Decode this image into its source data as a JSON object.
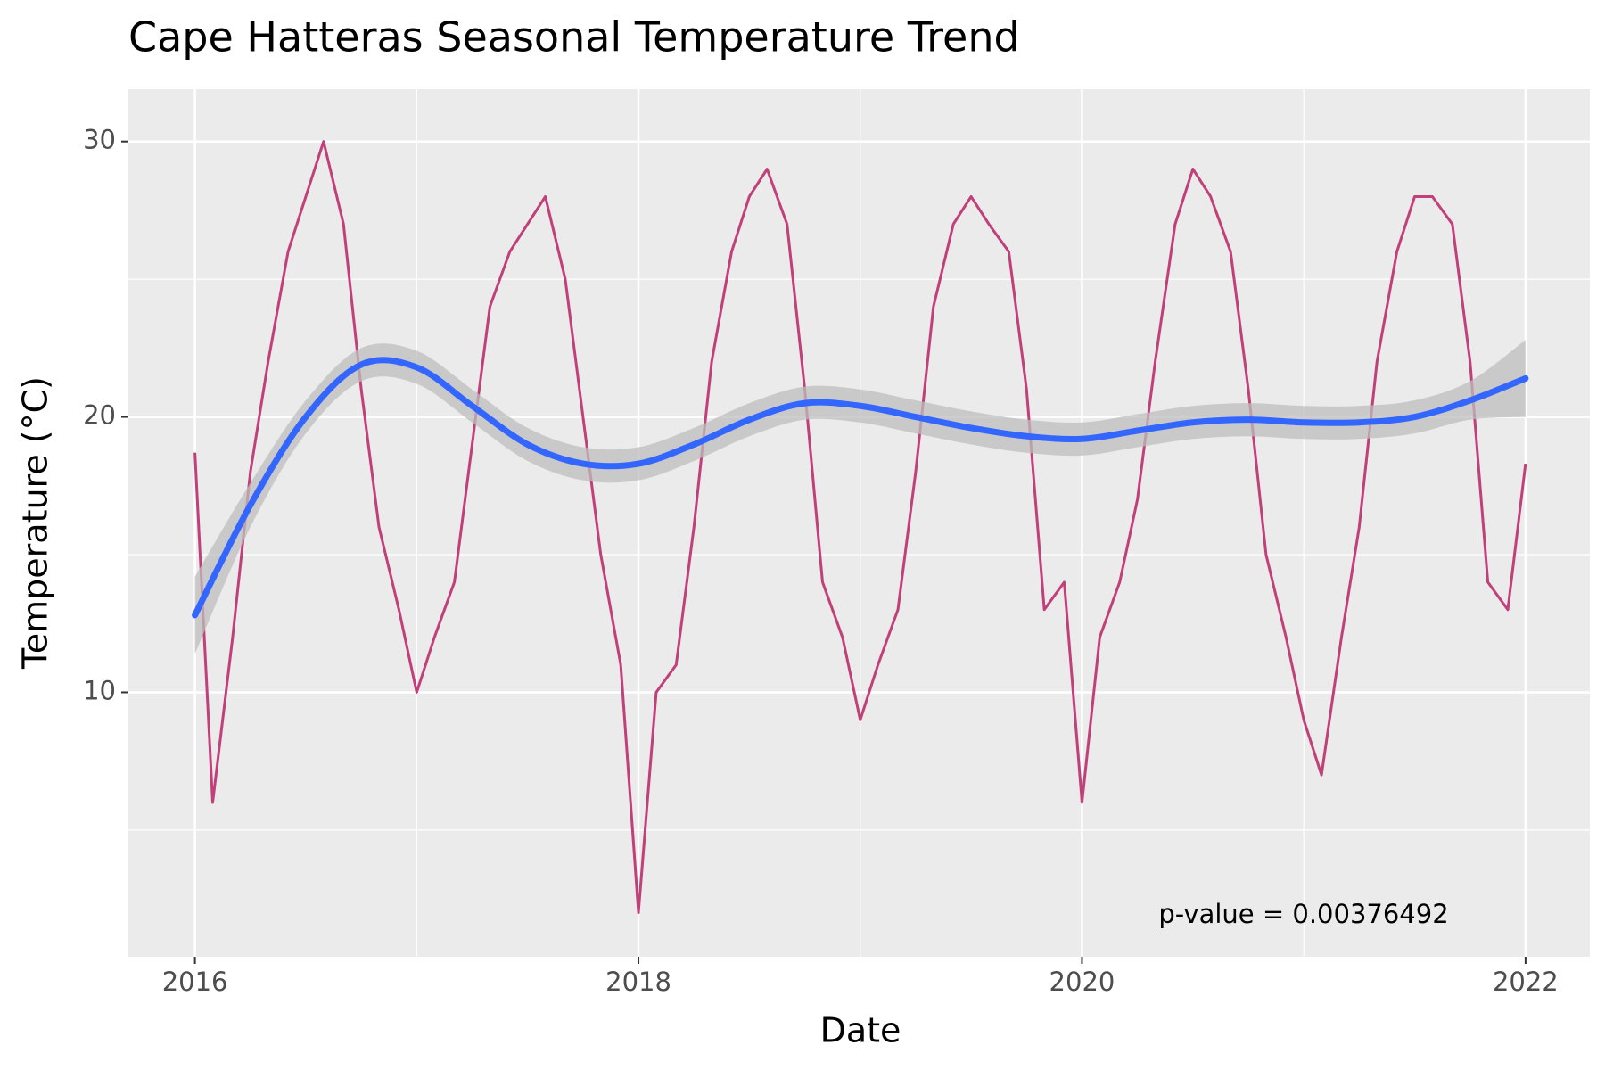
{
  "chart_data": {
    "type": "line",
    "title": "Cape Hatteras Seasonal Temperature Trend",
    "x_label": "Date",
    "y_label": "Temperature (°C)",
    "annotation": "p-value = 0.00376492",
    "xlim": [
      2015.7,
      2022.29
    ],
    "xticks": [
      2016,
      2018,
      2020,
      2022
    ],
    "x_minor_grid": [
      2017,
      2019,
      2021
    ],
    "ylim": [
      0.4,
      31.9
    ],
    "yticks": [
      10,
      20,
      30
    ],
    "y_minor_grid": [
      5,
      15,
      25
    ],
    "grid": true,
    "background": "#ebebeb",
    "series": [
      {
        "name": "Temperature",
        "color": "#c2407a",
        "x": [
          2016.0,
          2016.08,
          2016.17,
          2016.25,
          2016.33,
          2016.42,
          2016.5,
          2016.58,
          2016.67,
          2016.75,
          2016.83,
          2016.92,
          2017.0,
          2017.08,
          2017.17,
          2017.25,
          2017.33,
          2017.42,
          2017.5,
          2017.58,
          2017.67,
          2017.75,
          2017.83,
          2017.92,
          2018.0,
          2018.08,
          2018.17,
          2018.25,
          2018.33,
          2018.42,
          2018.5,
          2018.58,
          2018.67,
          2018.75,
          2018.83,
          2018.92,
          2019.0,
          2019.08,
          2019.17,
          2019.25,
          2019.33,
          2019.42,
          2019.5,
          2019.58,
          2019.67,
          2019.75,
          2019.83,
          2019.92,
          2020.0,
          2020.08,
          2020.17,
          2020.25,
          2020.33,
          2020.42,
          2020.5,
          2020.58,
          2020.67,
          2020.75,
          2020.83,
          2020.92,
          2021.0,
          2021.08,
          2021.17,
          2021.25,
          2021.33,
          2021.42,
          2021.5,
          2021.58,
          2021.67,
          2021.75,
          2021.83,
          2021.92,
          2022.0
        ],
        "values": [
          18.7,
          6,
          12,
          18,
          22,
          26,
          28,
          30,
          27,
          21,
          16,
          13,
          10,
          12,
          14,
          19,
          24,
          26,
          27,
          28,
          25,
          20,
          15,
          11,
          2,
          10,
          11,
          16,
          22,
          26,
          28,
          29,
          27,
          21,
          14,
          12,
          9,
          11,
          13,
          18,
          24,
          27,
          28,
          27,
          26,
          21,
          13,
          14,
          6,
          12,
          14,
          17,
          22,
          27,
          29,
          28,
          26,
          21,
          15,
          12,
          9,
          7,
          12,
          16,
          22,
          26,
          28,
          28,
          27,
          22,
          14,
          13,
          18.3
        ]
      },
      {
        "name": "Trend",
        "color": "#3366ff",
        "band_color": "#bdbdbd",
        "x": [
          2016.0,
          2016.25,
          2016.5,
          2016.75,
          2017.0,
          2017.25,
          2017.5,
          2017.75,
          2018.0,
          2018.25,
          2018.5,
          2018.75,
          2019.0,
          2019.25,
          2019.5,
          2019.75,
          2020.0,
          2020.25,
          2020.5,
          2020.75,
          2021.0,
          2021.25,
          2021.5,
          2021.75,
          2022.0
        ],
        "values": [
          12.8,
          16.8,
          20.0,
          21.9,
          21.8,
          20.4,
          19.0,
          18.3,
          18.3,
          19.0,
          19.9,
          20.5,
          20.4,
          20.0,
          19.6,
          19.3,
          19.2,
          19.5,
          19.8,
          19.9,
          19.8,
          19.8,
          20.0,
          20.6,
          21.4
        ],
        "lower": [
          11.4,
          16.0,
          19.4,
          21.3,
          21.2,
          19.8,
          18.4,
          17.7,
          17.7,
          18.4,
          19.3,
          19.9,
          19.8,
          19.4,
          19.0,
          18.7,
          18.6,
          18.9,
          19.2,
          19.3,
          19.2,
          19.2,
          19.4,
          19.9,
          20.0
        ],
        "upper": [
          14.2,
          17.6,
          20.6,
          22.5,
          22.4,
          21.0,
          19.6,
          18.9,
          18.9,
          19.6,
          20.5,
          21.1,
          21.0,
          20.6,
          20.2,
          19.9,
          19.8,
          20.1,
          20.4,
          20.5,
          20.4,
          20.4,
          20.6,
          21.3,
          22.8
        ]
      }
    ]
  }
}
